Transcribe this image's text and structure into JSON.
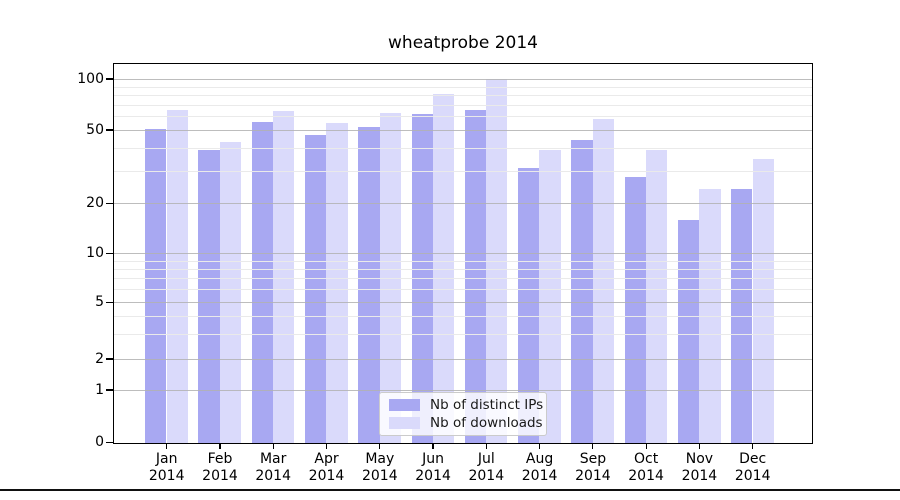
{
  "figure": {
    "title": "wheatprobe 2014"
  },
  "chart_data": {
    "type": "bar",
    "title": "wheatprobe 2014",
    "categories": [
      "Jan 2014",
      "Feb 2014",
      "Mar 2014",
      "Apr 2014",
      "May 2014",
      "Jun 2014",
      "Jul 2014",
      "Aug 2014",
      "Sep 2014",
      "Oct 2014",
      "Nov 2014",
      "Dec 2014"
    ],
    "series": [
      {
        "name": "Nb of distinct IPs",
        "color": "#a8a8f2",
        "values": [
          51,
          39,
          56,
          47,
          52,
          62,
          66,
          31,
          44,
          28,
          16,
          24
        ]
      },
      {
        "name": "Nb of downloads",
        "color": "#dadafb",
        "values": [
          66,
          43,
          65,
          55,
          63,
          82,
          100,
          39,
          58,
          39,
          24,
          35
        ]
      }
    ],
    "xlabel": "",
    "ylabel": "",
    "yscale": "symlog",
    "ylim": [
      0,
      110
    ],
    "yticks": [
      100,
      50,
      20,
      10,
      5,
      2,
      1,
      0
    ],
    "yticks_minor": [
      90,
      80,
      70,
      60,
      40,
      30,
      9,
      8,
      7,
      6,
      4,
      3
    ],
    "grid": true,
    "grid_position": "above-bars",
    "legend_position": "lower center"
  },
  "colors": {
    "background": "#ffffff",
    "grid_major": "#b2b2b2",
    "grid_minor": "#eaeaea",
    "spine": "#000000",
    "text": "#000000",
    "legend_border": "#cbcbcb"
  }
}
